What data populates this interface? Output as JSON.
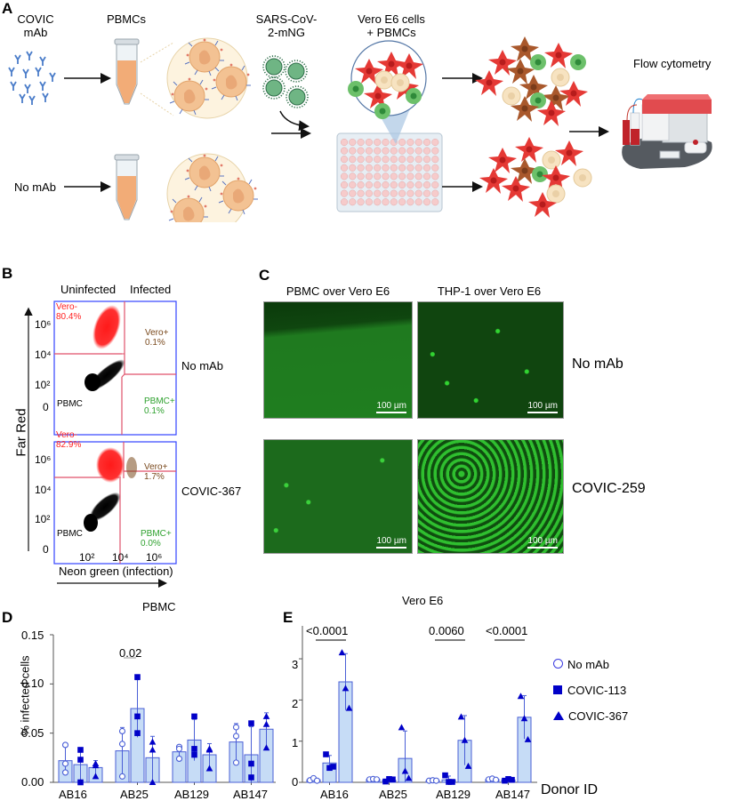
{
  "panels": {
    "A": {
      "label": "A",
      "texts": {
        "covic_mab": "COVIC\nmAb",
        "covic_line1": "COVIC",
        "covic_line2": "mAb",
        "pbmcs": "PBMCs",
        "virus_line1": "SARS-CoV-",
        "virus_line2": "2-mNG",
        "vero_line1": "Vero E6 cells",
        "vero_line2": "+ PBMCs",
        "no_mab": "No mAb",
        "flow": "Flow cytometry"
      }
    },
    "B": {
      "label": "B",
      "col_headers": [
        "Uninfected",
        "Infected"
      ],
      "y_axis_label": "Far Red",
      "x_axis_label": "Neon green (infection)",
      "y_ticks": [
        "10⁶",
        "10⁴",
        "10²",
        "0"
      ],
      "x_ticks": [
        "10²",
        "10⁴",
        "10⁶"
      ],
      "plots": [
        {
          "condition": "No mAb",
          "vero_neg_label": "Vero-",
          "vero_neg_pct": "80.4%",
          "vero_pos_label": "Vero+",
          "vero_pos_pct": "0.1%",
          "pbmc_label": "PBMC",
          "pbmc_pos_label": "PBMC+",
          "pbmc_pos_pct": "0.1%"
        },
        {
          "condition": "COVIC-367",
          "vero_neg_label": "Vero-",
          "vero_neg_pct": "82.9%",
          "vero_pos_label": "Vero+",
          "vero_pos_pct": "1.7%",
          "pbmc_label": "PBMC",
          "pbmc_pos_label": "PBMC+",
          "pbmc_pos_pct": "0.0%"
        }
      ],
      "colors": {
        "vero_neg": "#ff2020",
        "vero_pos": "#7a4a1e",
        "pbmc": "#111111",
        "pbmc_pos": "#2ea12e",
        "gate": "#e0526a",
        "frame": "#3344ff"
      }
    },
    "C": {
      "label": "C",
      "col_headers": [
        "PBMC over Vero E6",
        "THP-1 over Vero E6"
      ],
      "row_labels": [
        "No mAb",
        "COVIC-259"
      ],
      "scale_bar": "100 µm"
    },
    "D": {
      "label": "D",
      "title": "PBMC",
      "ylabel": "% infected cells",
      "yticks": [
        "0.00",
        "0.05",
        "0.10",
        "0.15"
      ],
      "categories": [
        "AB16",
        "AB25",
        "AB129",
        "AB147"
      ],
      "pvalue": "0.02"
    },
    "E": {
      "label": "E",
      "title": "Vero E6",
      "yticks": [
        "0",
        "1",
        "2",
        "3"
      ],
      "categories": [
        "AB16",
        "AB25",
        "AB129",
        "AB147"
      ],
      "xlabel": "Donor ID",
      "pvalues": [
        "<0.0001",
        "0.0060",
        "<0.0001"
      ],
      "legend": [
        "No mAb",
        "COVIC-113",
        "COVIC-367"
      ]
    }
  },
  "chart_data": [
    {
      "type": "bar",
      "title": "PBMC",
      "xlabel": "",
      "ylabel": "% infected cells",
      "ylim": [
        0,
        0.15
      ],
      "categories": [
        "AB16",
        "AB25",
        "AB129",
        "AB147"
      ],
      "series": [
        {
          "name": "No mAb",
          "values": [
            0.022,
            0.032,
            0.031,
            0.041
          ],
          "points": [
            [
              0.038,
              0.019,
              0.01
            ],
            [
              0.052,
              0.039,
              0.006
            ],
            [
              0.036,
              0.024,
              0.034
            ],
            [
              0.056,
              0.047,
              0.02
            ]
          ]
        },
        {
          "name": "COVIC-113",
          "values": [
            0.018,
            0.075,
            0.043,
            0.028
          ],
          "points": [
            [
              0.033,
              0.023,
              0.0
            ],
            [
              0.107,
              0.067,
              0.05
            ],
            [
              0.067,
              0.034,
              0.028
            ],
            [
              0.06,
              0.019,
              0.005
            ]
          ]
        },
        {
          "name": "COVIC-367",
          "values": [
            0.015,
            0.025,
            0.028,
            0.054
          ],
          "points": [
            [
              0.019,
              0.017,
              0.006
            ],
            [
              0.041,
              0.033,
              0.0
            ],
            [
              0.034,
              0.033,
              0.014
            ],
            [
              0.067,
              0.059,
              0.035
            ]
          ]
        }
      ],
      "annotations": [
        {
          "text": "0.02",
          "between": [
            "AB25"
          ]
        }
      ],
      "grid": false
    },
    {
      "type": "bar",
      "title": "Vero E6",
      "xlabel": "Donor ID",
      "ylabel": "",
      "ylim": [
        0,
        3.8
      ],
      "categories": [
        "AB16",
        "AB25",
        "AB129",
        "AB147"
      ],
      "series": [
        {
          "name": "No mAb",
          "values": [
            0.06,
            0.07,
            0.04,
            0.07
          ],
          "points": [
            [
              0.05,
              0.1,
              0.04
            ],
            [
              0.07,
              0.08,
              0.07
            ],
            [
              0.04,
              0.05,
              0.04
            ],
            [
              0.07,
              0.09,
              0.06
            ]
          ]
        },
        {
          "name": "COVIC-113",
          "values": [
            0.47,
            0.05,
            0.06,
            0.06
          ],
          "points": [
            [
              0.68,
              0.35,
              0.38
            ],
            [
              0.02,
              0.08,
              0.07
            ],
            [
              0.17,
              0.01,
              0.01
            ],
            [
              0.04,
              0.08,
              0.06
            ]
          ]
        },
        {
          "name": "COVIC-367",
          "values": [
            2.44,
            0.58,
            1.02,
            1.58
          ],
          "points": [
            [
              3.15,
              2.28,
              1.8
            ],
            [
              1.33,
              0.27,
              0.1
            ],
            [
              1.59,
              1.02,
              0.39
            ],
            [
              2.09,
              1.55,
              1.04
            ]
          ]
        }
      ],
      "annotations": [
        {
          "text": "<0.0001",
          "category": "AB16"
        },
        {
          "text": "0.0060",
          "category": "AB129"
        },
        {
          "text": "<0.0001",
          "category": "AB147"
        }
      ],
      "legend_position": "right",
      "grid": false
    }
  ]
}
